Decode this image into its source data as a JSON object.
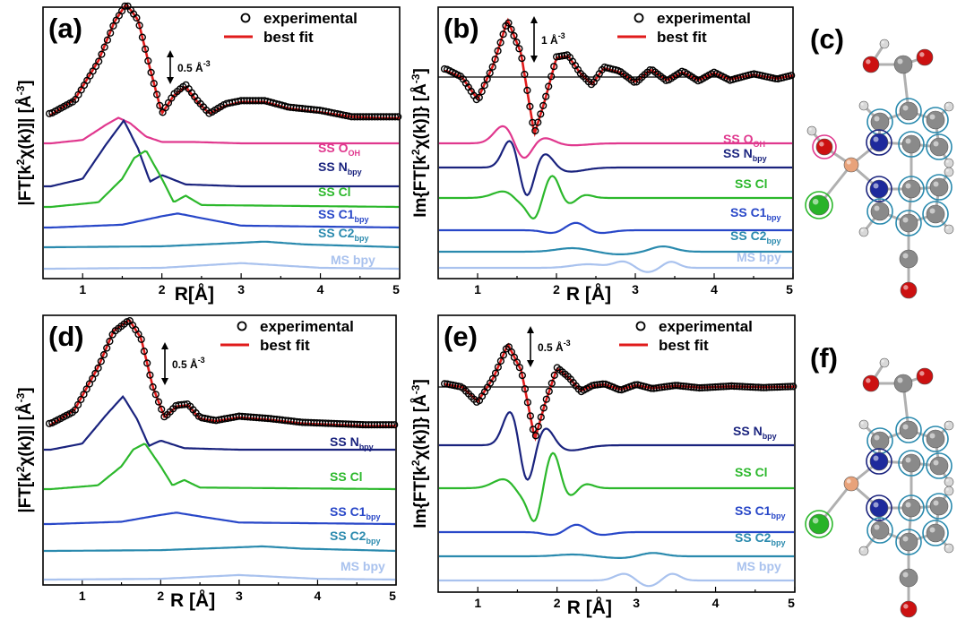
{
  "colors": {
    "fit": "#e01b1b",
    "oh": "#e0388e",
    "nbpy": "#1a237e",
    "cl": "#2cb82c",
    "c1bpy": "#2847c8",
    "c2bpy": "#2a8aae",
    "msbpy": "#a9c2ee",
    "cu": "#e8a27a",
    "o": "#cc1111",
    "n": "#1e2a9c",
    "c": "#8a8a8a",
    "h": "#d8d8d8",
    "clatom": "#29b329"
  },
  "panels": [
    {
      "id": "a",
      "label": "(a)",
      "xlabel": "R[Å]",
      "ylabel_main": "|FT[k",
      "ylabel_mid": "χ(k)]| [Å",
      "ylabel_end": "]",
      "scale": "0.5 Å",
      "scale_sup": "-3"
    },
    {
      "id": "b",
      "label": "(b)",
      "xlabel": "R [Å]",
      "ylabel_main": "Im{FT[k",
      "ylabel_mid": "χ(k)]} [Å",
      "ylabel_end": "]",
      "scale": "1 Å",
      "scale_sup": "-3"
    },
    {
      "id": "d",
      "label": "(d)",
      "xlabel": "R [Å]",
      "ylabel_main": "|FT[k",
      "ylabel_mid": "χ(k)]| [Å",
      "ylabel_end": "]",
      "scale": "0.5 Å",
      "scale_sup": "-3"
    },
    {
      "id": "e",
      "label": "(e)",
      "xlabel": "R [Å]",
      "ylabel_main": "Im{FT[k",
      "ylabel_mid": "χ(k)]} [Å",
      "ylabel_end": "]",
      "scale": "0.5 Å",
      "scale_sup": "-3"
    }
  ],
  "molecules": [
    {
      "id": "c",
      "label": "(c)"
    },
    {
      "id": "f",
      "label": "(f)"
    }
  ],
  "legend": {
    "experimental": "experimental",
    "best_fit": "best fit"
  },
  "components": {
    "ss_ooh": {
      "main": "SS O",
      "sub": "OH"
    },
    "ss_nbpy": {
      "main": "SS N",
      "sub": "bpy"
    },
    "ss_cl": {
      "main": "SS Cl",
      "sub": ""
    },
    "ss_c1bpy": {
      "main": "SS C1",
      "sub": "bpy"
    },
    "ss_c2bpy": {
      "main": "SS C2",
      "sub": "bpy"
    },
    "ms_bpy": {
      "main": "MS bpy",
      "sub": ""
    }
  },
  "chart_data": [
    {
      "type": "line",
      "panel": "a",
      "title": "",
      "xlabel": "R[Å]",
      "ylabel": "|FT[k2χ(k)]| [Å-3]",
      "xlim": [
        0.5,
        5.0
      ],
      "x_ticks": [
        1,
        2,
        3,
        4,
        5
      ],
      "scale_bar": "0.5 Å-3",
      "series": [
        {
          "name": "experimental",
          "x": [
            0.6,
            0.9,
            1.2,
            1.4,
            1.55,
            1.7,
            1.85,
            2.0,
            2.15,
            2.3,
            2.45,
            2.6,
            2.8,
            3.0,
            3.3,
            3.6,
            4.0,
            4.4,
            4.8,
            5.0
          ],
          "y": [
            0.6,
            0.8,
            1.4,
            2.0,
            2.3,
            2.05,
            1.3,
            0.6,
            0.9,
            1.05,
            0.8,
            0.6,
            0.75,
            0.8,
            0.8,
            0.7,
            0.65,
            0.55,
            0.55,
            0.55
          ]
        },
        {
          "name": "best fit",
          "x": [
            0.6,
            0.9,
            1.2,
            1.4,
            1.55,
            1.7,
            1.85,
            2.0,
            2.15,
            2.3,
            2.45,
            2.6,
            2.8,
            3.0,
            3.3,
            3.6,
            4.0,
            4.4,
            4.8,
            5.0
          ],
          "y": [
            0.58,
            0.82,
            1.42,
            2.02,
            2.3,
            2.05,
            1.3,
            0.6,
            0.88,
            1.02,
            0.78,
            0.6,
            0.72,
            0.78,
            0.78,
            0.68,
            0.62,
            0.55,
            0.53,
            0.53
          ]
        },
        {
          "name": "SS OOH",
          "x": [
            0.6,
            1.0,
            1.3,
            1.45,
            1.6,
            1.8,
            2.0,
            2.4,
            3.0,
            5.0
          ],
          "y": [
            0.0,
            0.05,
            0.28,
            0.38,
            0.3,
            0.1,
            0.02,
            0.02,
            0.0,
            0.0
          ]
        },
        {
          "name": "SS Nbpy",
          "x": [
            0.6,
            1.0,
            1.3,
            1.52,
            1.7,
            1.85,
            2.0,
            2.3,
            3.0,
            5.0
          ],
          "y": [
            0.0,
            0.08,
            0.45,
            0.7,
            0.4,
            0.05,
            0.12,
            0.02,
            0.0,
            0.0
          ]
        },
        {
          "name": "SS Cl",
          "x": [
            0.6,
            1.2,
            1.5,
            1.65,
            1.8,
            2.0,
            2.15,
            2.3,
            2.5,
            5.0
          ],
          "y": [
            0.0,
            0.05,
            0.3,
            0.52,
            0.6,
            0.3,
            0.05,
            0.12,
            0.02,
            0.0
          ]
        },
        {
          "name": "SS C1bpy",
          "x": [
            0.6,
            1.5,
            2.0,
            2.2,
            2.5,
            3.0,
            5.0
          ],
          "y": [
            0.0,
            0.03,
            0.12,
            0.15,
            0.1,
            0.02,
            0.0
          ]
        },
        {
          "name": "SS C2bpy",
          "x": [
            0.6,
            2.0,
            2.8,
            3.3,
            3.8,
            5.0
          ],
          "y": [
            0.0,
            0.01,
            0.04,
            0.06,
            0.03,
            0.0
          ]
        },
        {
          "name": "MS bpy",
          "x": [
            0.6,
            2.0,
            2.6,
            3.0,
            3.4,
            4.0,
            5.0
          ],
          "y": [
            0.0,
            0.01,
            0.04,
            0.06,
            0.04,
            0.01,
            0.0
          ]
        }
      ]
    },
    {
      "type": "line",
      "panel": "b",
      "title": "",
      "xlabel": "R [Å]",
      "ylabel": "Im{FT[k2χ(k)]} [Å-3]",
      "xlim": [
        0.5,
        5.0
      ],
      "x_ticks": [
        1,
        2,
        3,
        4,
        5
      ],
      "scale_bar": "1 Å-3",
      "series": [
        {
          "name": "experimental",
          "x": [
            0.6,
            0.8,
            1.0,
            1.2,
            1.38,
            1.55,
            1.72,
            1.85,
            2.0,
            2.15,
            2.3,
            2.45,
            2.6,
            2.8,
            3.0,
            3.2,
            3.4,
            3.6,
            3.8,
            4.0,
            4.2,
            4.5,
            4.8,
            5.0
          ],
          "y": [
            0.2,
            0.0,
            -0.6,
            0.3,
            1.4,
            0.6,
            -1.4,
            -0.6,
            0.5,
            0.55,
            0.1,
            -0.2,
            0.25,
            0.15,
            -0.15,
            0.2,
            -0.1,
            0.15,
            -0.1,
            0.12,
            -0.08,
            0.08,
            -0.05,
            0.05
          ]
        },
        {
          "name": "best fit",
          "x": [
            0.6,
            0.8,
            1.0,
            1.2,
            1.38,
            1.55,
            1.72,
            1.85,
            2.0,
            2.15,
            2.3,
            2.45,
            2.6,
            2.8,
            3.0,
            3.2,
            3.4,
            3.6,
            3.8,
            4.0,
            4.2,
            4.5,
            4.8,
            5.0
          ],
          "y": [
            0.15,
            0.0,
            -0.55,
            0.3,
            1.42,
            0.6,
            -1.42,
            -0.6,
            0.48,
            0.52,
            0.1,
            -0.18,
            0.22,
            0.12,
            -0.12,
            0.18,
            -0.08,
            0.12,
            -0.08,
            0.1,
            -0.06,
            0.06,
            -0.04,
            0.04
          ]
        }
      ]
    },
    {
      "type": "line",
      "panel": "d",
      "title": "",
      "xlabel": "R [Å]",
      "ylabel": "|FT[k2χ(k)]| [Å-3]",
      "xlim": [
        0.5,
        5.0
      ],
      "x_ticks": [
        1,
        2,
        3,
        4,
        5
      ],
      "scale_bar": "0.5 Å-3",
      "series": [
        {
          "name": "experimental",
          "x": [
            0.6,
            0.9,
            1.2,
            1.4,
            1.6,
            1.75,
            1.9,
            2.05,
            2.2,
            2.35,
            2.5,
            2.7,
            3.0,
            3.4,
            3.8,
            4.2,
            4.6,
            5.0
          ],
          "y": [
            0.4,
            0.6,
            1.3,
            1.9,
            2.1,
            1.8,
            1.0,
            0.5,
            0.7,
            0.72,
            0.5,
            0.45,
            0.52,
            0.48,
            0.42,
            0.4,
            0.38,
            0.38
          ]
        },
        {
          "name": "best fit",
          "x": [
            0.6,
            0.9,
            1.2,
            1.4,
            1.6,
            1.75,
            1.9,
            2.05,
            2.2,
            2.35,
            2.5,
            2.7,
            3.0,
            3.4,
            3.8,
            4.2,
            4.6,
            5.0
          ],
          "y": [
            0.38,
            0.62,
            1.32,
            1.92,
            2.1,
            1.8,
            1.0,
            0.5,
            0.68,
            0.7,
            0.48,
            0.44,
            0.5,
            0.46,
            0.4,
            0.38,
            0.36,
            0.36
          ]
        }
      ]
    },
    {
      "type": "line",
      "panel": "e",
      "title": "",
      "xlabel": "R [Å]",
      "ylabel": "Im{FT[k2χ(k)]} [Å-3]",
      "xlim": [
        0.5,
        5.0
      ],
      "x_ticks": [
        1,
        2,
        3,
        4,
        5
      ],
      "scale_bar": "0.5 Å-3",
      "series": [
        {
          "name": "experimental",
          "x": [
            0.6,
            0.8,
            1.0,
            1.2,
            1.38,
            1.55,
            1.72,
            1.85,
            2.0,
            2.15,
            2.3,
            2.45,
            2.6,
            2.8,
            3.0,
            3.2,
            3.5,
            3.8,
            4.2,
            4.6,
            5.0
          ],
          "y": [
            0.1,
            0.0,
            -0.5,
            0.3,
            1.3,
            0.5,
            -1.6,
            -0.5,
            0.6,
            0.3,
            -0.15,
            0.05,
            0.1,
            -0.1,
            0.08,
            -0.05,
            0.05,
            -0.03,
            0.03,
            -0.02,
            0.02
          ]
        },
        {
          "name": "best fit",
          "x": [
            0.6,
            0.8,
            1.0,
            1.2,
            1.38,
            1.55,
            1.72,
            1.85,
            2.0,
            2.15,
            2.3,
            2.45,
            2.6,
            2.8,
            3.0,
            3.2,
            3.5,
            3.8,
            4.2,
            4.6,
            5.0
          ],
          "y": [
            0.08,
            0.0,
            -0.45,
            0.3,
            1.32,
            0.5,
            -1.62,
            -0.5,
            0.58,
            0.28,
            -0.12,
            0.04,
            0.08,
            -0.08,
            0.06,
            -0.04,
            0.04,
            -0.02,
            0.02,
            -0.01,
            0.01
          ]
        }
      ]
    }
  ]
}
